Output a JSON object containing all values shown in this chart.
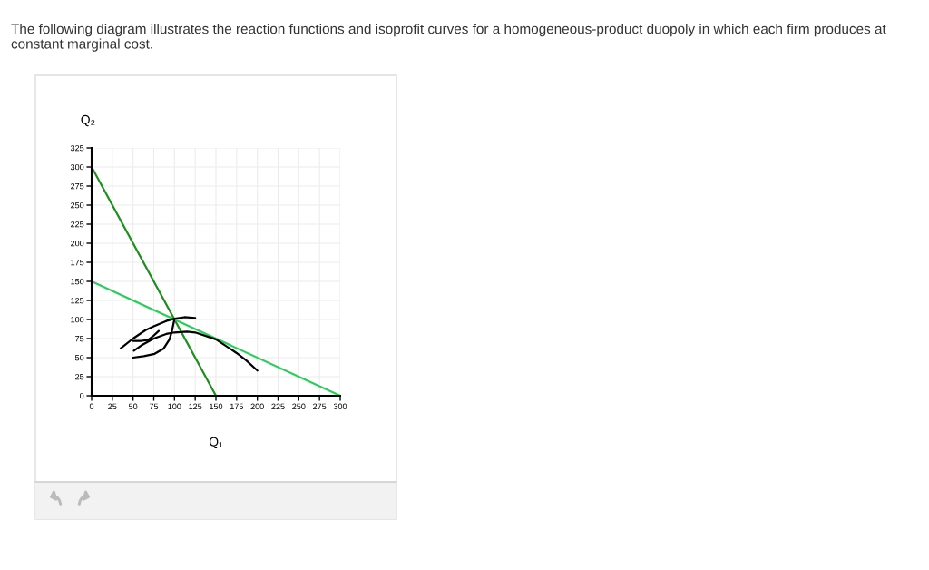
{
  "chart_data": {
    "type": "line",
    "title": "The following diagram illustrates the reaction functions and isoprofit curves for a homogeneous-product duopoly in which each firm produces at constant marginal cost.",
    "xlabel": "Q₁",
    "ylabel": "Q₂",
    "xlim": [
      0,
      300
    ],
    "ylim": [
      0,
      325
    ],
    "xticks": [
      0,
      25,
      50,
      75,
      100,
      125,
      150,
      175,
      200,
      225,
      250,
      275,
      300
    ],
    "yticks": [
      0,
      25,
      50,
      75,
      100,
      125,
      150,
      175,
      200,
      225,
      250,
      275,
      300,
      325
    ],
    "grid": true,
    "series": [
      {
        "color": "#1f8f1f",
        "x": [
          0,
          150
        ],
        "values": [
          300,
          0
        ]
      },
      {
        "color": "#2ecc5c",
        "x": [
          0,
          300
        ],
        "values": [
          150,
          0
        ]
      },
      {
        "color": "#000000",
        "x": [
          35,
          50,
          65,
          75,
          90,
          100,
          112,
          125
        ],
        "values": [
          62,
          75,
          86,
          91,
          98,
          101,
          103,
          102
        ]
      },
      {
        "color": "#000000",
        "x": [
          51,
          60,
          75,
          90,
          100,
          115,
          125,
          150,
          175,
          187,
          200
        ],
        "values": [
          59,
          66,
          75,
          81,
          83,
          84,
          83,
          74,
          56,
          46,
          33
        ]
      },
      {
        "color": "#000000",
        "x": [
          50,
          63,
          76,
          87,
          94,
          97,
          100
        ],
        "values": [
          50,
          52,
          55,
          62,
          74,
          85,
          101
        ]
      },
      {
        "color": "#000000",
        "x": [
          50,
          60,
          68,
          74,
          81
        ],
        "values": [
          72,
          72,
          73,
          78,
          85
        ]
      }
    ]
  }
}
